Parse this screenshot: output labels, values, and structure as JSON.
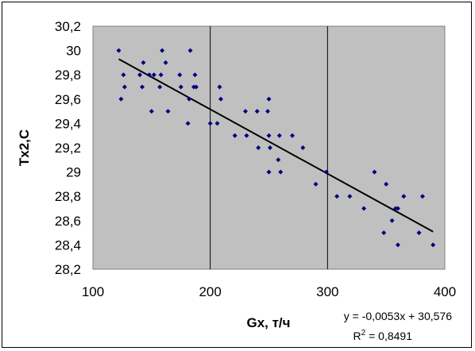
{
  "chart_data": {
    "type": "scatter",
    "xlabel": "Gx, т/ч",
    "ylabel": "Tx2,C",
    "xlim": [
      100,
      400
    ],
    "ylim": [
      28.2,
      30.2
    ],
    "x_ticks": [
      "100",
      "200",
      "300",
      "400"
    ],
    "y_ticks": [
      "28,2",
      "28,4",
      "28,6",
      "28,8",
      "29",
      "29,2",
      "29,4",
      "29,6",
      "29,8",
      "30",
      "30,2"
    ],
    "grid": "vertical major gridlines",
    "plot_background": "#c0c0c0",
    "marker_color": "#000080",
    "trendline": {
      "type": "linear",
      "slope": -0.0053,
      "intercept": 30.576,
      "x_range": [
        122,
        390
      ],
      "equation": "y = -0,0053x + 30,576",
      "r2_label": "R",
      "r2_exp": "2",
      "r2_value": " = 0,8491"
    },
    "points": [
      [
        122,
        30.0
      ],
      [
        124,
        29.6
      ],
      [
        126,
        29.8
      ],
      [
        127,
        29.7
      ],
      [
        140,
        29.8
      ],
      [
        142,
        29.7
      ],
      [
        143,
        29.9
      ],
      [
        148,
        29.8
      ],
      [
        150,
        29.5
      ],
      [
        152,
        29.8
      ],
      [
        157,
        29.7
      ],
      [
        158,
        29.8
      ],
      [
        159,
        30.0
      ],
      [
        162,
        29.9
      ],
      [
        164,
        29.5
      ],
      [
        174,
        29.8
      ],
      [
        175,
        29.7
      ],
      [
        181,
        29.4
      ],
      [
        182,
        29.6
      ],
      [
        183,
        30.0
      ],
      [
        186,
        29.7
      ],
      [
        187,
        29.8
      ],
      [
        188,
        29.7
      ],
      [
        200,
        29.4
      ],
      [
        206,
        29.4
      ],
      [
        208,
        29.7
      ],
      [
        209,
        29.6
      ],
      [
        221,
        29.3
      ],
      [
        230,
        29.5
      ],
      [
        231,
        29.3
      ],
      [
        240,
        29.5
      ],
      [
        241,
        29.2
      ],
      [
        249,
        29.5
      ],
      [
        250,
        29.3
      ],
      [
        250,
        29.6
      ],
      [
        250,
        29.0
      ],
      [
        251,
        29.2
      ],
      [
        258,
        29.1
      ],
      [
        259,
        29.3
      ],
      [
        260,
        29.0
      ],
      [
        270,
        29.3
      ],
      [
        279,
        29.2
      ],
      [
        290,
        28.9
      ],
      [
        299,
        29.0
      ],
      [
        308,
        28.8
      ],
      [
        319,
        28.8
      ],
      [
        331,
        28.7
      ],
      [
        340,
        29.0
      ],
      [
        348,
        28.5
      ],
      [
        350,
        28.9
      ],
      [
        355,
        28.6
      ],
      [
        358,
        28.7
      ],
      [
        360,
        28.4
      ],
      [
        360,
        28.7
      ],
      [
        365,
        28.8
      ],
      [
        378,
        28.5
      ],
      [
        381,
        28.8
      ],
      [
        390,
        28.4
      ]
    ]
  }
}
